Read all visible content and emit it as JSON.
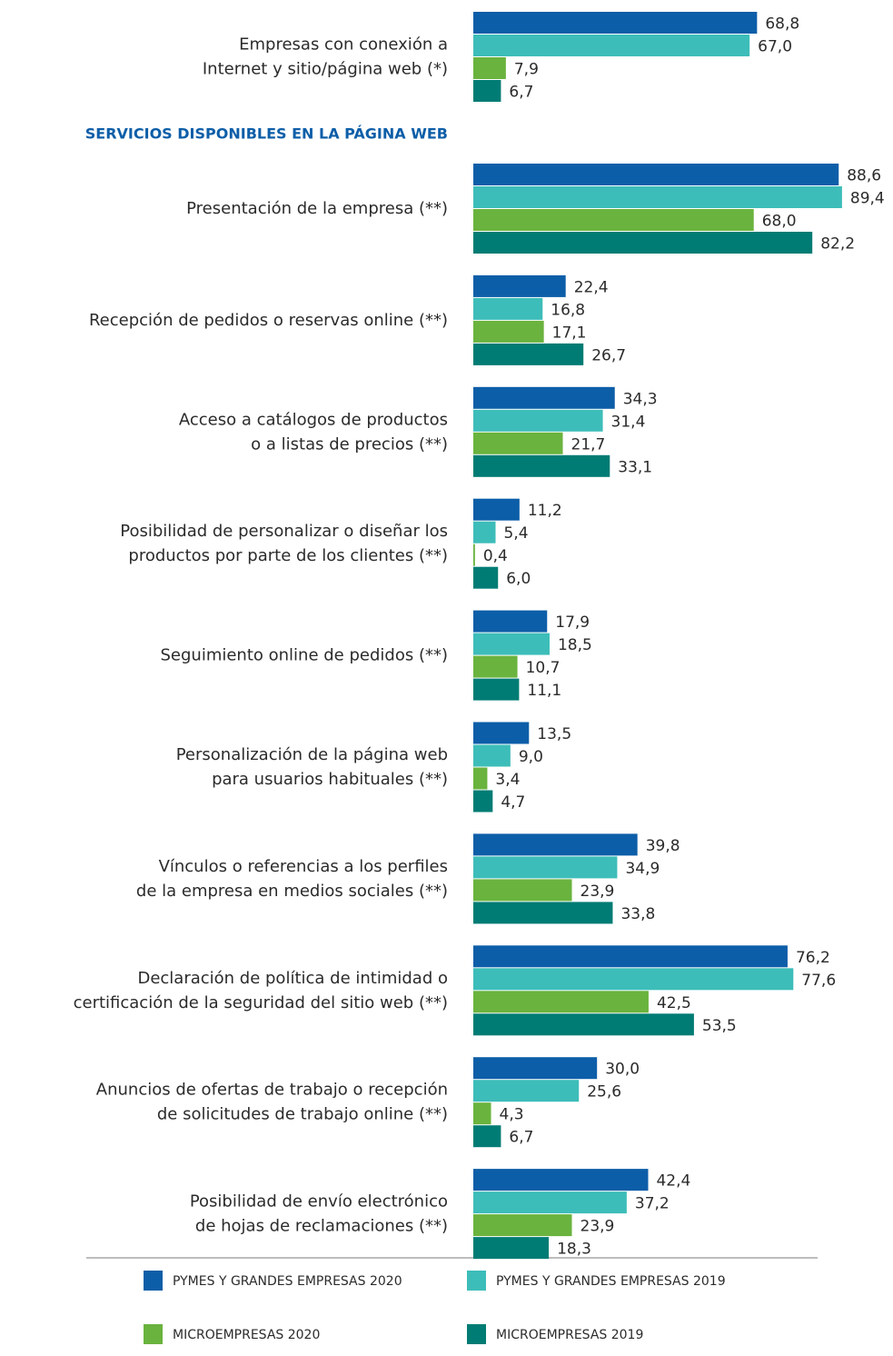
{
  "chart_data": {
    "type": "hbar",
    "section_title": "SERVICIOS DISPONIBLES EN LA PÁGINA WEB",
    "categories": [
      [
        "Empresas con conexión a",
        "Internet y sitio/página web (*)"
      ],
      [
        "Presentación de la empresa (**)"
      ],
      [
        "Recepción de pedidos o reservas online (**)"
      ],
      [
        "Acceso a catálogos de productos",
        "o a listas de precios (**)"
      ],
      [
        "Posibilidad de personalizar o diseñar los",
        "productos por parte de los clientes (**)"
      ],
      [
        "Seguimiento online de pedidos (**)"
      ],
      [
        "Personalización de la página web",
        "para usuarios habituales (**)"
      ],
      [
        "Vínculos o referencias a los perfiles",
        "de la empresa en medios sociales (**)"
      ],
      [
        "Declaración de política de intimidad o",
        "certificación de la seguridad del sitio web (**)"
      ],
      [
        "Anuncios de ofertas de trabajo o recepción",
        "de solicitudes de trabajo online (**)"
      ],
      [
        "Posibilidad de envío electrónico",
        "de hojas de reclamaciones (**)"
      ]
    ],
    "xlim": [
      0,
      100
    ],
    "series": [
      {
        "name": "PYMES Y GRANDES EMPRESAS 2020",
        "color": "#0d5ea8",
        "values": [
          68.8,
          88.6,
          22.4,
          34.3,
          11.2,
          17.9,
          13.5,
          39.8,
          76.2,
          30.0,
          42.4
        ],
        "value_labels": [
          "68,8",
          "88,6",
          "22,4",
          "34,3",
          "11,2",
          "17,9",
          "13,5",
          "39,8",
          "76,2",
          "30,0",
          "42,4"
        ]
      },
      {
        "name": "PYMES Y GRANDES EMPRESAS 2019",
        "color": "#3dbdb9",
        "values": [
          67.0,
          89.4,
          16.8,
          31.4,
          5.4,
          18.5,
          9.0,
          34.9,
          77.6,
          25.6,
          37.2
        ],
        "value_labels": [
          "67,0",
          "89,4",
          "16,8",
          "31,4",
          "5,4",
          "18,5",
          "9,0",
          "34,9",
          "77,6",
          "25,6",
          "37,2"
        ]
      },
      {
        "name": "MICROEMPRESAS 2020",
        "color": "#6ab33e",
        "values": [
          7.9,
          68.0,
          17.1,
          21.7,
          0.4,
          10.7,
          3.4,
          23.9,
          42.5,
          4.3,
          23.9
        ],
        "value_labels": [
          "7,9",
          "68,0",
          "17,1",
          "21,7",
          "0,4",
          "10,7",
          "3,4",
          "23,9",
          "42,5",
          "4,3",
          "23,9"
        ]
      },
      {
        "name": "MICROEMPRESAS 2019",
        "color": "#007c74",
        "values": [
          6.7,
          82.2,
          26.7,
          33.1,
          6.0,
          11.1,
          4.7,
          33.8,
          53.5,
          6.7,
          18.3
        ],
        "value_labels": [
          "6,7",
          "82,2",
          "26,7",
          "33,1",
          "6,0",
          "11,1",
          "4,7",
          "33,8",
          "53,5",
          "6,7",
          "18,3"
        ]
      }
    ],
    "legend": "bottom"
  }
}
